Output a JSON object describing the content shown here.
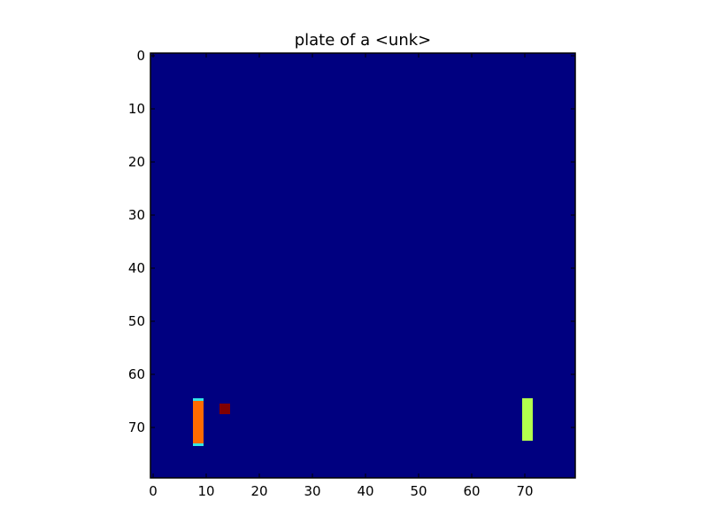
{
  "title": "plate of a <unk>",
  "colors": {
    "background": "#000080",
    "frame": "#000000",
    "left_paddle_body": "#ff6a00",
    "left_paddle_ends": "#33e6e6",
    "right_paddle": "#b3ff4d",
    "ball": "#800000"
  },
  "chart_data": {
    "type": "heatmap",
    "title": "plate of a <unk>",
    "xlim": [
      -0.5,
      79.5
    ],
    "ylim": [
      79.5,
      -0.5
    ],
    "x_ticks": [
      0,
      10,
      20,
      30,
      40,
      50,
      60,
      70
    ],
    "y_ticks": [
      0,
      10,
      20,
      30,
      40,
      50,
      60,
      70
    ],
    "grid": false,
    "objects": [
      {
        "name": "left-paddle",
        "x": [
          7.5,
          9.5
        ],
        "y": [
          64.5,
          73.5
        ],
        "color": "#ff6a00",
        "end_color": "#33e6e6"
      },
      {
        "name": "ball",
        "x": [
          12.5,
          14.5
        ],
        "y": [
          65.5,
          67.5
        ],
        "color": "#800000"
      },
      {
        "name": "right-paddle",
        "x": [
          69.5,
          71.5
        ],
        "y": [
          64.5,
          72.5
        ],
        "color": "#b3ff4d"
      }
    ]
  }
}
